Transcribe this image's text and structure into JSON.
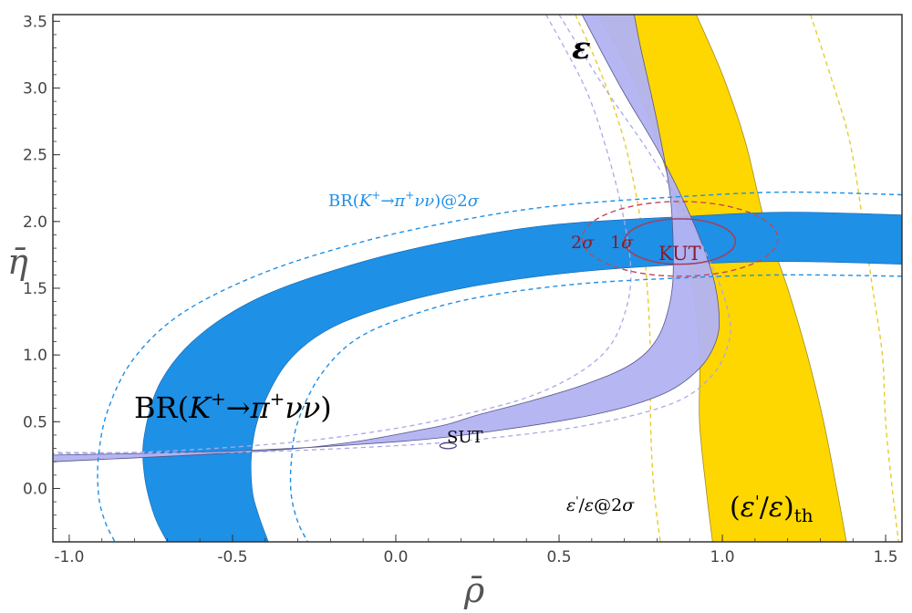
{
  "chart_data": {
    "type": "contour",
    "xlabel": "ρ̄",
    "ylabel": "η̄",
    "xlim": [
      -1.05,
      1.55
    ],
    "ylim": [
      -0.4,
      3.55
    ],
    "x_ticks": [
      "-1.0",
      "-0.5",
      "0.0",
      "0.5",
      "1.0",
      "1.5"
    ],
    "y_ticks": [
      "0.0",
      "0.5",
      "1.0",
      "1.5",
      "2.0",
      "2.5",
      "3.0",
      "3.5"
    ],
    "colors": {
      "kaon": "#1e90e6",
      "kaon_2sigma": "#1e90e6",
      "epsilon": "#b3b3f2",
      "epsilon_2sigma": "#a9a9e8",
      "epsprime": "#ffd700",
      "epsprime_2sigma": "#e8cc2a",
      "kut": "#b0345a"
    },
    "labels": {
      "br_main_prefix": "BR(",
      "br_main_k": "K",
      "br_main_plus1": "+",
      "br_main_arrow": "→",
      "br_main_pi": "π",
      "br_main_plus2": "+",
      "br_main_nu": "νν",
      "br_main_suffix": ")",
      "br_2s_prefix": "BR(",
      "br_2s_k": "K",
      "br_2s_plus1": "+",
      "br_2s_arrow": "→",
      "br_2s_pi": "π",
      "br_2s_plus2": "+",
      "br_2s_nu": "νν",
      "br_2s_suffix": ")@2",
      "br_2s_sigma": "σ",
      "epsilon": "ε",
      "epsth_open": "(",
      "epsth_eps1": "ε",
      "epsth_prime": "'",
      "epsth_slash": "/",
      "epsth_eps2": "ε",
      "epsth_close": ")",
      "epsth_sub": "th",
      "eps2s_eps1": "ε",
      "eps2s_prime": "'",
      "eps2s_slash": "/",
      "eps2s_eps2": "ε",
      "eps2s_at": "@2",
      "eps2s_sigma": "σ",
      "kut": "KUT",
      "sut": "SUT",
      "twosigma_2": "2",
      "twosigma_s": "σ",
      "onesigma_1": "1",
      "onesigma_s": "σ"
    },
    "regions": {
      "kaon_band": {
        "outer": [
          [
            1.55,
            2.05
          ],
          [
            1.2,
            2.07
          ],
          [
            0.9,
            2.04
          ],
          [
            0.5,
            1.98
          ],
          [
            0.2,
            1.87
          ],
          [
            -0.1,
            1.7
          ],
          [
            -0.4,
            1.45
          ],
          [
            -0.6,
            1.15
          ],
          [
            -0.72,
            0.8
          ],
          [
            -0.77,
            0.4
          ],
          [
            -0.77,
            0.1
          ],
          [
            -0.74,
            -0.2
          ],
          [
            -0.7,
            -0.4
          ]
        ],
        "inner": [
          [
            1.55,
            1.68
          ],
          [
            1.2,
            1.7
          ],
          [
            0.9,
            1.68
          ],
          [
            0.55,
            1.62
          ],
          [
            0.25,
            1.52
          ],
          [
            0.0,
            1.38
          ],
          [
            -0.2,
            1.2
          ],
          [
            -0.33,
            0.95
          ],
          [
            -0.41,
            0.6
          ],
          [
            -0.44,
            0.3
          ],
          [
            -0.44,
            0.0
          ],
          [
            -0.42,
            -0.2
          ],
          [
            -0.39,
            -0.4
          ]
        ]
      },
      "kaon_2sigma": {
        "outer": [
          [
            1.55,
            2.2
          ],
          [
            1.2,
            2.22
          ],
          [
            0.9,
            2.19
          ],
          [
            0.5,
            2.12
          ],
          [
            0.2,
            2.01
          ],
          [
            -0.1,
            1.85
          ],
          [
            -0.4,
            1.62
          ],
          [
            -0.65,
            1.32
          ],
          [
            -0.8,
            0.98
          ],
          [
            -0.88,
            0.6
          ],
          [
            -0.91,
            0.25
          ],
          [
            -0.91,
            -0.05
          ],
          [
            -0.89,
            -0.25
          ],
          [
            -0.86,
            -0.4
          ]
        ],
        "inner": [
          [
            1.55,
            1.59
          ],
          [
            1.2,
            1.6
          ],
          [
            0.9,
            1.58
          ],
          [
            0.55,
            1.53
          ],
          [
            0.25,
            1.43
          ],
          [
            0.05,
            1.3
          ],
          [
            -0.12,
            1.12
          ],
          [
            -0.23,
            0.85
          ],
          [
            -0.3,
            0.5
          ],
          [
            -0.32,
            0.2
          ],
          [
            -0.32,
            -0.05
          ],
          [
            -0.3,
            -0.25
          ],
          [
            -0.27,
            -0.4
          ]
        ]
      },
      "epsilon_band": {
        "outer": [
          [
            0.57,
            3.55
          ],
          [
            0.69,
            3.0
          ],
          [
            0.81,
            2.5
          ],
          [
            0.91,
            2.0
          ],
          [
            0.97,
            1.6
          ],
          [
            0.99,
            1.3
          ],
          [
            0.98,
            1.1
          ],
          [
            0.93,
            0.9
          ],
          [
            0.82,
            0.71
          ],
          [
            0.62,
            0.56
          ],
          [
            0.3,
            0.43
          ],
          [
            0.0,
            0.35
          ],
          [
            -0.5,
            0.28
          ],
          [
            -1.05,
            0.25
          ]
        ],
        "inner": [
          [
            0.73,
            3.55
          ],
          [
            0.75,
            3.3
          ],
          [
            0.8,
            2.75
          ],
          [
            0.84,
            2.2
          ],
          [
            0.85,
            1.7
          ],
          [
            0.84,
            1.4
          ],
          [
            0.8,
            1.12
          ],
          [
            0.72,
            0.93
          ],
          [
            0.58,
            0.78
          ],
          [
            0.42,
            0.66
          ],
          [
            0.25,
            0.55
          ],
          [
            0.1,
            0.45
          ],
          [
            -0.3,
            0.3
          ],
          [
            -1.05,
            0.2
          ]
        ]
      },
      "epsilon_2sigma": {
        "outer": [
          [
            0.5,
            3.55
          ],
          [
            0.64,
            3.0
          ],
          [
            0.78,
            2.5
          ],
          [
            0.9,
            2.0
          ],
          [
            0.98,
            1.6
          ],
          [
            1.02,
            1.3
          ],
          [
            1.02,
            1.1
          ],
          [
            0.97,
            0.85
          ],
          [
            0.85,
            0.64
          ],
          [
            0.6,
            0.48
          ],
          [
            0.3,
            0.38
          ],
          [
            0.0,
            0.32
          ],
          [
            -0.5,
            0.27
          ],
          [
            -1.05,
            0.27
          ]
        ],
        "inner": [
          [
            0.46,
            3.55
          ],
          [
            0.58,
            3.0
          ],
          [
            0.65,
            2.5
          ],
          [
            0.7,
            2.0
          ],
          [
            0.72,
            1.6
          ],
          [
            0.7,
            1.3
          ],
          [
            0.65,
            1.05
          ],
          [
            0.55,
            0.85
          ],
          [
            0.4,
            0.68
          ],
          [
            0.2,
            0.55
          ],
          [
            0.0,
            0.45
          ],
          [
            -0.3,
            0.35
          ],
          [
            -0.7,
            0.28
          ],
          [
            -1.05,
            0.26
          ]
        ]
      },
      "epsprime_band": {
        "outer": [
          [
            0.62,
            3.55
          ],
          [
            0.72,
            3.1
          ],
          [
            0.8,
            2.6
          ],
          [
            0.87,
            2.0
          ],
          [
            0.91,
            1.5
          ],
          [
            0.93,
            1.0
          ],
          [
            0.93,
            0.5
          ],
          [
            0.95,
            0.0
          ],
          [
            0.97,
            -0.4
          ]
        ],
        "inner": [
          [
            0.92,
            3.55
          ],
          [
            1.0,
            3.1
          ],
          [
            1.07,
            2.6
          ],
          [
            1.13,
            2.0
          ],
          [
            1.2,
            1.5
          ],
          [
            1.26,
            1.0
          ],
          [
            1.31,
            0.5
          ],
          [
            1.35,
            0.0
          ],
          [
            1.38,
            -0.4
          ]
        ]
      },
      "epsprime_2sigma": {
        "outer": [
          [
            0.55,
            3.55
          ],
          [
            0.63,
            3.1
          ],
          [
            0.7,
            2.6
          ],
          [
            0.75,
            2.0
          ],
          [
            0.77,
            1.5
          ],
          [
            0.78,
            1.0
          ],
          [
            0.78,
            0.5
          ],
          [
            0.79,
            0.0
          ],
          [
            0.81,
            -0.4
          ]
        ],
        "inner": [
          [
            1.27,
            3.55
          ],
          [
            1.33,
            3.1
          ],
          [
            1.39,
            2.6
          ],
          [
            1.43,
            2.0
          ],
          [
            1.46,
            1.5
          ],
          [
            1.49,
            1.0
          ],
          [
            1.5,
            0.5
          ],
          [
            1.52,
            0.0
          ],
          [
            1.54,
            -0.4
          ]
        ]
      },
      "kut_1sigma": {
        "center": [
          0.87,
          1.85
        ],
        "rx": 0.17,
        "ry": 0.17
      },
      "kut_2sigma": {
        "center": [
          0.87,
          1.87
        ],
        "rx": 0.3,
        "ry": 0.28
      },
      "sut": {
        "center": [
          0.16,
          0.32
        ],
        "rx": 0.025,
        "ry": 0.022
      }
    }
  }
}
